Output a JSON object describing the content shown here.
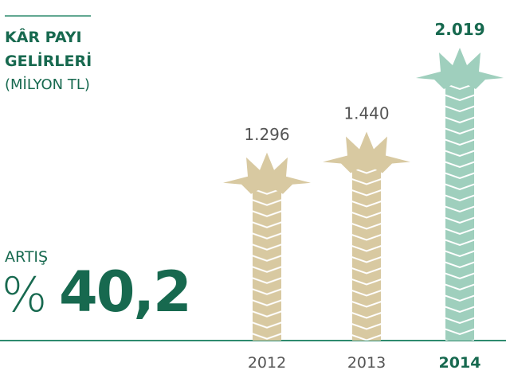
{
  "chart_data": {
    "type": "palm-pictogram",
    "title": "KÂR PAYI GELİRLERİ",
    "subtitle": "(MİLYON TL)",
    "growth_label": "ARTIŞ",
    "growth_prefix": "%",
    "growth_value": "40,2",
    "categories": [
      "2012",
      "2013",
      "2014"
    ],
    "values": [
      1296,
      1440,
      2019
    ],
    "value_labels": [
      "1.296",
      "1.440",
      "2.019"
    ],
    "colors": [
      "#d8c9a1",
      "#d8c9a1",
      "#9fcfbd"
    ],
    "highlight_index": 2,
    "highlight_color": "#17694f"
  }
}
